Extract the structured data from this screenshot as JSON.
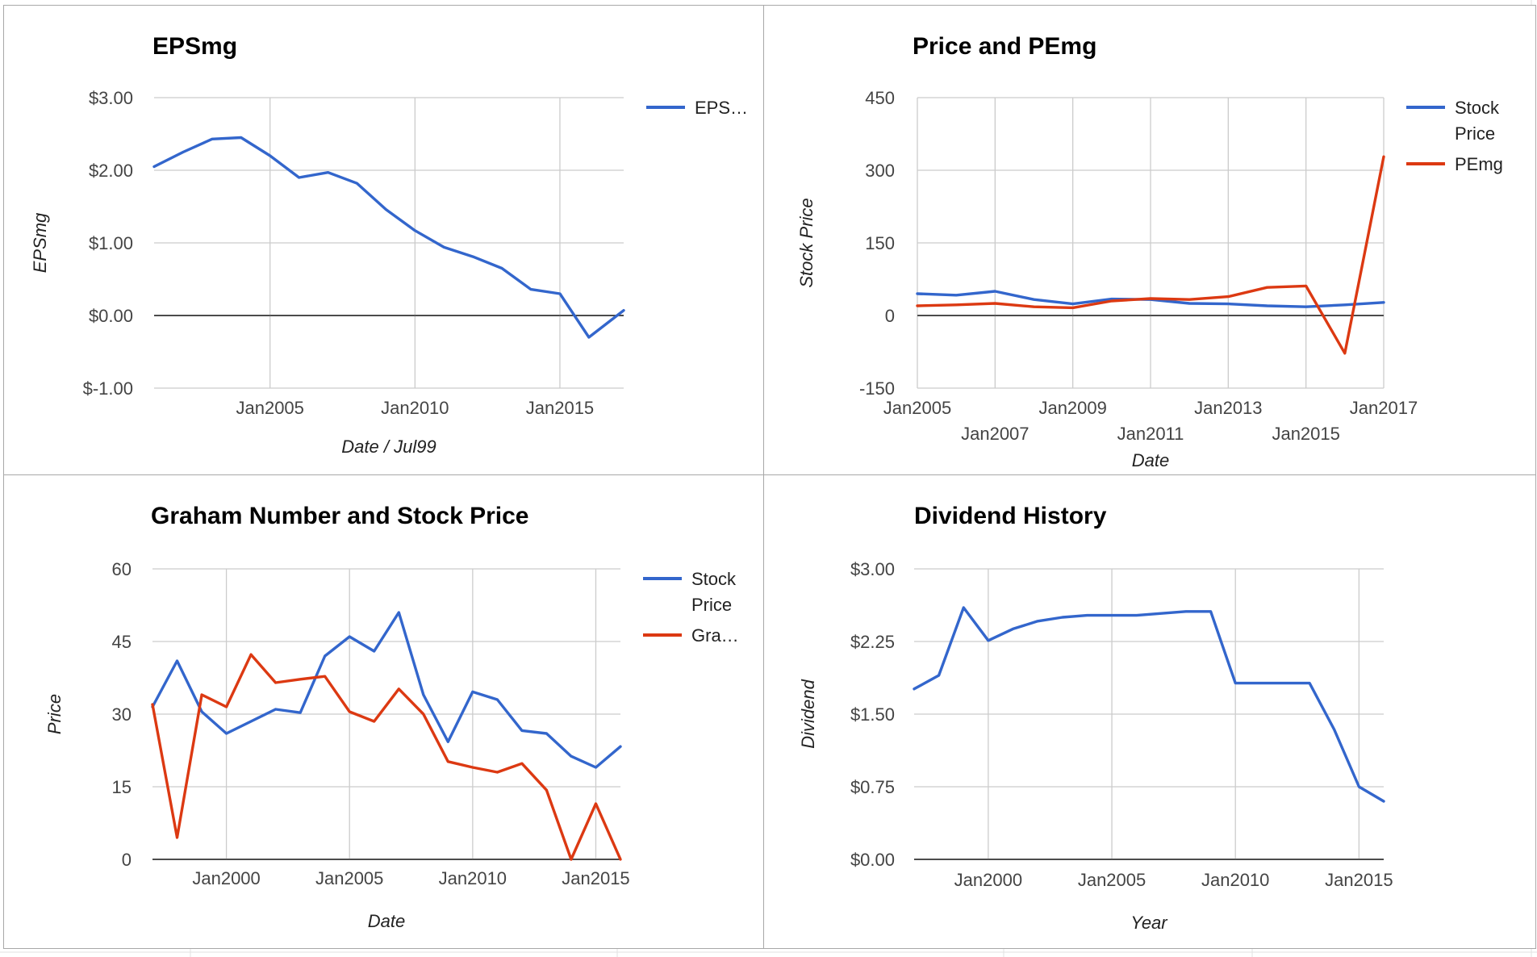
{
  "colors": {
    "blue": "#3366cc",
    "red": "#dc3912"
  },
  "chart_data": [
    {
      "type": "line",
      "title": "EPSmg",
      "xlabel": "Date / Jul99",
      "ylabel": "EPSmg",
      "xlim": [
        2001,
        2017.2
      ],
      "ylim": [
        -1,
        3
      ],
      "y_ticks": [
        {
          "v": 3,
          "label": "$3.00"
        },
        {
          "v": 2,
          "label": "$2.00"
        },
        {
          "v": 1,
          "label": "$1.00"
        },
        {
          "v": 0,
          "label": "$0.00"
        },
        {
          "v": -1,
          "label": "$-1.00"
        }
      ],
      "x_ticks": [
        {
          "v": 2005,
          "label": "Jan2005",
          "row": 0
        },
        {
          "v": 2010,
          "label": "Jan2010",
          "row": 0
        },
        {
          "v": 2015,
          "label": "Jan2015",
          "row": 0
        }
      ],
      "legend": {
        "position": "right",
        "entries": [
          {
            "label": "EPS…",
            "color": "#3366cc"
          }
        ]
      },
      "series": [
        {
          "color": "#3366cc",
          "x": [
            2001,
            2002,
            2003,
            2004,
            2005,
            2006,
            2007,
            2008,
            2009,
            2010,
            2011,
            2012,
            2013,
            2014,
            2015,
            2016,
            2017.2
          ],
          "y": [
            2.05,
            2.25,
            2.43,
            2.45,
            2.2,
            1.9,
            1.97,
            1.82,
            1.46,
            1.17,
            0.94,
            0.81,
            0.65,
            0.36,
            0.3,
            -0.3,
            0.07
          ]
        }
      ]
    },
    {
      "type": "line",
      "title": "Price and PEmg",
      "xlabel": "Date",
      "ylabel": "Stock Price",
      "xlim": [
        2005,
        2017
      ],
      "ylim": [
        -150,
        450
      ],
      "y_ticks": [
        {
          "v": 450,
          "label": "450"
        },
        {
          "v": 300,
          "label": "300"
        },
        {
          "v": 150,
          "label": "150"
        },
        {
          "v": 0,
          "label": "0"
        },
        {
          "v": -150,
          "label": "-150"
        }
      ],
      "x_ticks": [
        {
          "v": 2005,
          "label": "Jan2005",
          "row": 0
        },
        {
          "v": 2007,
          "label": "Jan2007",
          "row": 1
        },
        {
          "v": 2009,
          "label": "Jan2009",
          "row": 0
        },
        {
          "v": 2011,
          "label": "Jan2011",
          "row": 1
        },
        {
          "v": 2013,
          "label": "Jan2013",
          "row": 0
        },
        {
          "v": 2015,
          "label": "Jan2015",
          "row": 1
        },
        {
          "v": 2017,
          "label": "Jan2017",
          "row": 0
        }
      ],
      "legend": {
        "position": "right",
        "entries": [
          {
            "label": "Stock",
            "label2": "Price",
            "color": "#3366cc"
          },
          {
            "label": "PEmg",
            "label2": "",
            "color": "#dc3912"
          }
        ]
      },
      "series": [
        {
          "color": "#3366cc",
          "x": [
            2005,
            2006,
            2007,
            2008,
            2009,
            2010,
            2011,
            2012,
            2013,
            2014,
            2015,
            2016,
            2017
          ],
          "y": [
            45,
            42,
            50,
            33,
            24,
            34,
            33,
            25,
            24,
            20,
            18,
            22,
            27
          ]
        },
        {
          "color": "#dc3912",
          "x": [
            2005,
            2006,
            2007,
            2008,
            2009,
            2010,
            2011,
            2012,
            2013,
            2014,
            2015,
            2016,
            2017
          ],
          "y": [
            20,
            22,
            25,
            18,
            16,
            30,
            35,
            33,
            39,
            58,
            61,
            -78,
            328
          ]
        }
      ]
    },
    {
      "type": "line",
      "title": "Graham Number and Stock Price",
      "xlabel": "Date",
      "ylabel": "Price",
      "xlim": [
        1997,
        2016
      ],
      "ylim": [
        0,
        60
      ],
      "y_ticks": [
        {
          "v": 60,
          "label": "60"
        },
        {
          "v": 45,
          "label": "45"
        },
        {
          "v": 30,
          "label": "30"
        },
        {
          "v": 15,
          "label": "15"
        },
        {
          "v": 0,
          "label": "0"
        }
      ],
      "x_ticks": [
        {
          "v": 2000,
          "label": "Jan2000",
          "row": 0
        },
        {
          "v": 2005,
          "label": "Jan2005",
          "row": 0
        },
        {
          "v": 2010,
          "label": "Jan2010",
          "row": 0
        },
        {
          "v": 2015,
          "label": "Jan2015",
          "row": 0
        }
      ],
      "legend": {
        "position": "right",
        "entries": [
          {
            "label": "Stock",
            "label2": "Price",
            "color": "#3366cc"
          },
          {
            "label": "Gra…",
            "label2": "",
            "color": "#dc3912"
          }
        ]
      },
      "series": [
        {
          "color": "#3366cc",
          "x": [
            1997,
            1998,
            1999,
            2000,
            2001,
            2002,
            2003,
            2004,
            2005,
            2006,
            2007,
            2008,
            2009,
            2010,
            2011,
            2012,
            2013,
            2014,
            2015,
            2016
          ],
          "y": [
            31.5,
            41,
            30.5,
            26,
            28.5,
            31,
            30.3,
            42,
            46,
            43,
            51,
            34,
            24.3,
            34.6,
            33,
            26.6,
            26,
            21.3,
            19,
            23.3
          ]
        },
        {
          "color": "#dc3912",
          "x": [
            1997,
            1998,
            1999,
            2000,
            2001,
            2002,
            2003,
            2004,
            2005,
            2006,
            2007,
            2008,
            2009,
            2010,
            2011,
            2012,
            2013,
            2014,
            2015,
            2016
          ],
          "y": [
            32,
            4.5,
            34,
            31.5,
            42.3,
            36.5,
            37.2,
            37.8,
            30.5,
            28.5,
            35.2,
            30,
            20.2,
            19,
            18,
            19.8,
            14.3,
            0,
            11.5,
            0
          ]
        }
      ]
    },
    {
      "type": "line",
      "title": "Dividend History",
      "xlabel": "Year",
      "ylabel": "Dividend",
      "xlim": [
        1997,
        2016
      ],
      "ylim": [
        0,
        3
      ],
      "y_ticks": [
        {
          "v": 3,
          "label": "$3.00"
        },
        {
          "v": 2.25,
          "label": "$2.25"
        },
        {
          "v": 1.5,
          "label": "$1.50"
        },
        {
          "v": 0.75,
          "label": "$0.75"
        },
        {
          "v": 0,
          "label": "$0.00"
        }
      ],
      "x_ticks": [
        {
          "v": 2000,
          "label": "Jan2000",
          "row": 0
        },
        {
          "v": 2005,
          "label": "Jan2005",
          "row": 0
        },
        {
          "v": 2010,
          "label": "Jan2010",
          "row": 0
        },
        {
          "v": 2015,
          "label": "Jan2015",
          "row": 0
        }
      ],
      "legend": {
        "position": "none",
        "entries": []
      },
      "series": [
        {
          "color": "#3366cc",
          "x": [
            1997,
            1998,
            1999,
            2000,
            2001,
            2002,
            2003,
            2004,
            2005,
            2006,
            2007,
            2008,
            2009,
            2010,
            2011,
            2012,
            2013,
            2014,
            2015,
            2016
          ],
          "y": [
            1.76,
            1.9,
            2.6,
            2.26,
            2.38,
            2.46,
            2.5,
            2.52,
            2.52,
            2.52,
            2.54,
            2.56,
            2.56,
            1.82,
            1.82,
            1.82,
            1.82,
            1.34,
            0.75,
            0.6
          ]
        }
      ]
    }
  ]
}
